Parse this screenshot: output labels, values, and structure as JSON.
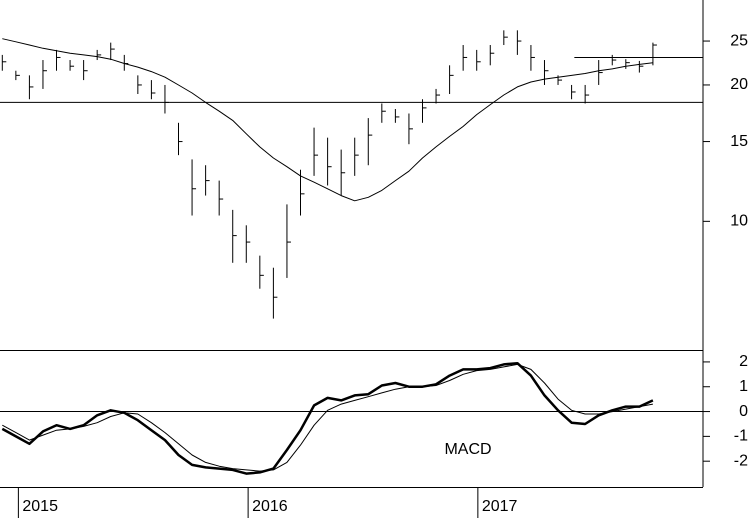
{
  "chart_data": [
    {
      "type": "ohlc",
      "log_scale": true,
      "color": "#000000",
      "xlim": [
        2014.92,
        2017.98
      ],
      "ylim": [
        5.2,
        30.8
      ],
      "yticks": [
        10,
        15,
        20,
        25
      ],
      "x": [
        2014.93,
        2014.989,
        2015.048,
        2015.107,
        2015.166,
        2015.225,
        2015.284,
        2015.343,
        2015.402,
        2015.461,
        2015.52,
        2015.579,
        2015.638,
        2015.697,
        2015.756,
        2015.815,
        2015.874,
        2015.933,
        2015.992,
        2016.051,
        2016.11,
        2016.169,
        2016.228,
        2016.287,
        2016.346,
        2016.405,
        2016.464,
        2016.523,
        2016.582,
        2016.641,
        2016.7,
        2016.759,
        2016.818,
        2016.877,
        2016.936,
        2016.995,
        2017.054,
        2017.113,
        2017.172,
        2017.231,
        2017.29,
        2017.349,
        2017.408,
        2017.467,
        2017.526,
        2017.585,
        2017.644,
        2017.703,
        2017.762
      ],
      "high": [
        23.3,
        21.5,
        21.0,
        22.7,
        23.9,
        22.7,
        22.7,
        23.9,
        24.8,
        23.3,
        21.0,
        20.5,
        20.0,
        16.5,
        13.7,
        13.3,
        12.3,
        10.6,
        9.8,
        8.4,
        7.9,
        10.9,
        13.0,
        16.1,
        15.3,
        14.4,
        15.3,
        16.9,
        18.2,
        17.7,
        17.3,
        18.6,
        19.6,
        22.1,
        24.5,
        23.9,
        24.5,
        26.4,
        26.4,
        24.5,
        22.7,
        21.0,
        20.0,
        20.0,
        22.7,
        23.3,
        22.8,
        22.6,
        24.8
      ],
      "low": [
        21.5,
        20.5,
        18.6,
        19.6,
        21.5,
        21.5,
        20.5,
        22.7,
        22.7,
        21.5,
        19.1,
        18.6,
        17.3,
        14.0,
        10.3,
        11.4,
        10.3,
        8.1,
        8.1,
        7.1,
        6.1,
        7.5,
        10.3,
        12.6,
        12.0,
        11.4,
        12.6,
        13.3,
        16.5,
        16.5,
        14.8,
        16.5,
        18.2,
        19.1,
        21.5,
        21.5,
        22.1,
        24.5,
        23.3,
        21.5,
        20.0,
        20.0,
        18.6,
        18.2,
        20.0,
        22.1,
        21.7,
        21.3,
        22.1
      ],
      "close": [
        22.5,
        21.0,
        19.8,
        21.5,
        23.0,
        22.0,
        21.5,
        23.3,
        24.0,
        22.3,
        20.0,
        19.2,
        18.3,
        15.0,
        11.8,
        12.3,
        11.2,
        9.3,
        9.0,
        7.6,
        6.8,
        9.0,
        11.5,
        14.0,
        13.2,
        12.8,
        14.0,
        15.5,
        17.5,
        17.0,
        16.0,
        17.8,
        19.0,
        21.0,
        23.0,
        22.5,
        23.5,
        25.5,
        25.0,
        23.0,
        21.5,
        20.5,
        19.3,
        19.0,
        21.3,
        22.7,
        22.4,
        22.0,
        24.5
      ],
      "series": [
        {
          "color": "#000000",
          "values": [
            25.3,
            24.9,
            24.5,
            24.1,
            23.8,
            23.5,
            23.3,
            23.1,
            22.8,
            22.3,
            21.9,
            21.4,
            20.8,
            20.0,
            19.2,
            18.3,
            17.5,
            16.7,
            15.6,
            14.6,
            13.8,
            13.2,
            12.6,
            12.2,
            11.8,
            11.4,
            11.1,
            11.3,
            11.7,
            12.3,
            12.9,
            13.8,
            14.6,
            15.4,
            16.2,
            17.2,
            18.1,
            19.0,
            19.8,
            20.3,
            20.6,
            20.8,
            21.0,
            21.2,
            21.5,
            21.7,
            22.0,
            22.2,
            22.4
          ]
        }
      ],
      "reference_lines": [
        {
          "value": 18.3
        },
        {
          "value": 23.0,
          "from": 2017.42
        }
      ]
    },
    {
      "type": "line",
      "annotation": "MACD",
      "ylim": [
        -3.04,
        2.44
      ],
      "yticks": [
        2,
        1,
        0,
        -1,
        -2
      ],
      "zero_line": true,
      "xticks": [
        {
          "value": 2015,
          "label": "2015"
        },
        {
          "value": 2016,
          "label": "2016"
        },
        {
          "value": 2017,
          "label": "2017"
        }
      ],
      "series": [
        {
          "color": "#000000",
          "width": 2.5,
          "values": [
            -0.7,
            -1.0,
            -1.3,
            -0.8,
            -0.55,
            -0.7,
            -0.55,
            -0.15,
            0.05,
            -0.05,
            -0.35,
            -0.75,
            -1.15,
            -1.75,
            -2.15,
            -2.25,
            -2.3,
            -2.35,
            -2.5,
            -2.45,
            -2.3,
            -1.55,
            -0.75,
            0.25,
            0.55,
            0.45,
            0.65,
            0.7,
            1.05,
            1.15,
            1.0,
            1.0,
            1.1,
            1.45,
            1.7,
            1.7,
            1.75,
            1.9,
            1.95,
            1.45,
            0.65,
            0.05,
            -0.45,
            -0.5,
            -0.15,
            0.05,
            0.2,
            0.2,
            0.45
          ]
        },
        {
          "color": "#000000",
          "width": 1,
          "values": [
            -0.55,
            -0.85,
            -1.15,
            -0.95,
            -0.75,
            -0.7,
            -0.6,
            -0.45,
            -0.2,
            -0.05,
            -0.1,
            -0.45,
            -0.85,
            -1.3,
            -1.75,
            -2.05,
            -2.2,
            -2.3,
            -2.35,
            -2.4,
            -2.35,
            -2.05,
            -1.35,
            -0.55,
            0.05,
            0.3,
            0.45,
            0.6,
            0.75,
            0.9,
            1.0,
            1.0,
            1.05,
            1.25,
            1.5,
            1.65,
            1.7,
            1.8,
            1.9,
            1.7,
            1.15,
            0.5,
            0.05,
            -0.1,
            -0.1,
            0,
            0.1,
            0.2,
            0.3
          ]
        }
      ]
    }
  ]
}
